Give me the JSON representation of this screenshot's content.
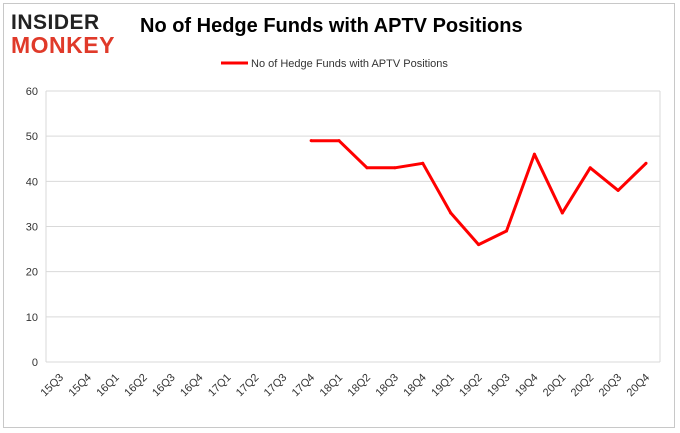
{
  "brand": {
    "line1": "INSIDER",
    "line2": "MONKEY"
  },
  "chart_data": {
    "type": "line",
    "title": "No of Hedge Funds with APTV Positions",
    "xlabel": "",
    "ylabel": "",
    "categories": [
      "15Q3",
      "15Q4",
      "16Q1",
      "16Q2",
      "16Q3",
      "16Q4",
      "17Q1",
      "17Q2",
      "17Q3",
      "17Q4",
      "18Q1",
      "18Q2",
      "18Q3",
      "18Q4",
      "19Q1",
      "19Q2",
      "19Q3",
      "19Q4",
      "20Q1",
      "20Q2",
      "20Q3",
      "20Q4"
    ],
    "series": [
      {
        "name": "No of Hedge Funds with APTV Positions",
        "color": "#ff0000",
        "values": [
          null,
          null,
          null,
          null,
          null,
          null,
          null,
          null,
          null,
          49,
          49,
          43,
          43,
          44,
          33,
          26,
          29,
          46,
          33,
          43,
          38,
          44
        ]
      }
    ],
    "ylim": [
      0,
      60
    ],
    "yticks": [
      0,
      10,
      20,
      30,
      40,
      50,
      60
    ],
    "grid": true,
    "legend_position": "top-center"
  }
}
